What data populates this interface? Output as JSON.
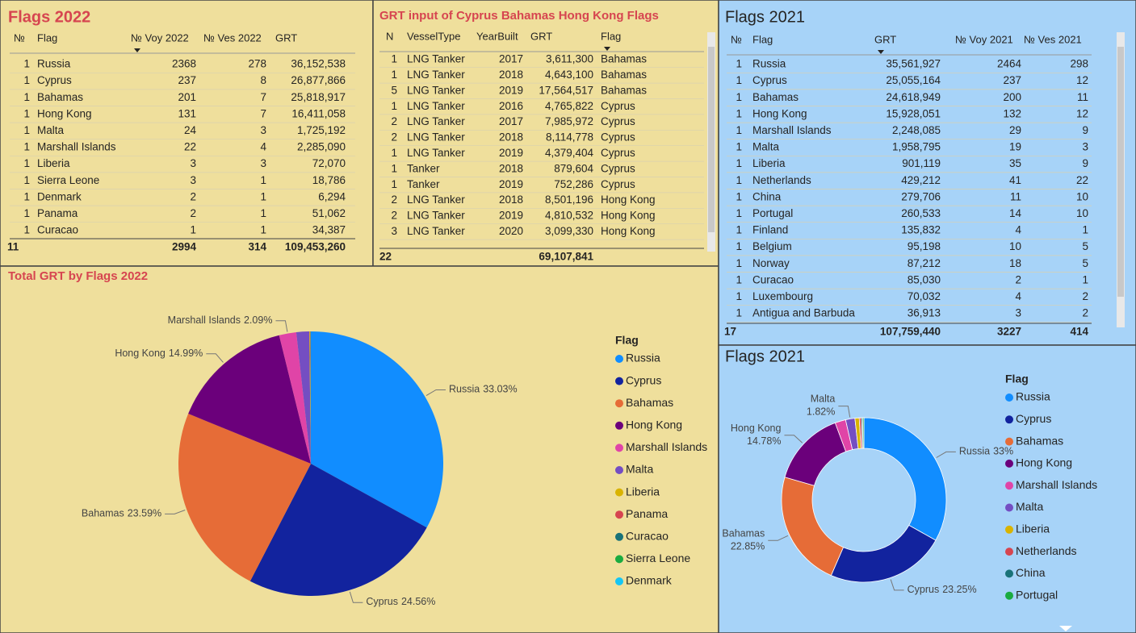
{
  "tables": [
    {
      "title": "Flags 2022",
      "columns": [
        "№",
        "Flag",
        "№ Voy 2022",
        "№ Ves 2022",
        "GRT"
      ],
      "rows": [
        [
          "1",
          "Russia",
          "2368",
          "278",
          "36,152,538"
        ],
        [
          "1",
          "Cyprus",
          "237",
          "8",
          "26,877,866"
        ],
        [
          "1",
          "Bahamas",
          "201",
          "7",
          "25,818,917"
        ],
        [
          "1",
          "Hong Kong",
          "131",
          "7",
          "16,411,058"
        ],
        [
          "1",
          "Malta",
          "24",
          "3",
          "1,725,192"
        ],
        [
          "1",
          "Marshall Islands",
          "22",
          "4",
          "2,285,090"
        ],
        [
          "1",
          "Liberia",
          "3",
          "3",
          "72,070"
        ],
        [
          "1",
          "Sierra Leone",
          "3",
          "1",
          "18,786"
        ],
        [
          "1",
          "Denmark",
          "2",
          "1",
          "6,294"
        ],
        [
          "1",
          "Panama",
          "2",
          "1",
          "51,062"
        ],
        [
          "1",
          "Curacao",
          "1",
          "1",
          "34,387"
        ]
      ],
      "total": [
        "11",
        null,
        "2994",
        "314",
        "109,453,260"
      ]
    },
    {
      "title": "GRT input of Cyprus Bahamas Hong Kong Flags",
      "columns": [
        "N",
        "VesselType",
        "YearBuilt",
        "GRT",
        "Flag"
      ],
      "rows": [
        [
          "1",
          "LNG Tanker",
          "2017",
          "3,611,300",
          "Bahamas"
        ],
        [
          "1",
          "LNG Tanker",
          "2018",
          "4,643,100",
          "Bahamas"
        ],
        [
          "5",
          "LNG Tanker",
          "2019",
          "17,564,517",
          "Bahamas"
        ],
        [
          "1",
          "LNG Tanker",
          "2016",
          "4,765,822",
          "Cyprus"
        ],
        [
          "2",
          "LNG Tanker",
          "2017",
          "7,985,972",
          "Cyprus"
        ],
        [
          "2",
          "LNG Tanker",
          "2018",
          "8,114,778",
          "Cyprus"
        ],
        [
          "1",
          "LNG Tanker",
          "2019",
          "4,379,404",
          "Cyprus"
        ],
        [
          "1",
          "Tanker",
          "2018",
          "879,604",
          "Cyprus"
        ],
        [
          "1",
          "Tanker",
          "2019",
          "752,286",
          "Cyprus"
        ],
        [
          "2",
          "LNG Tanker",
          "2018",
          "8,501,196",
          "Hong Kong"
        ],
        [
          "2",
          "LNG Tanker",
          "2019",
          "4,810,532",
          "Hong Kong"
        ],
        [
          "3",
          "LNG Tanker",
          "2020",
          "3,099,330",
          "Hong Kong"
        ]
      ],
      "total": [
        "22",
        null,
        null,
        "69,107,841",
        null
      ]
    },
    {
      "title": "Flags 2021",
      "columns": [
        "№",
        "Flag",
        "GRT",
        "№ Voy 2021",
        "№ Ves 2021"
      ],
      "rows": [
        [
          "1",
          "Russia",
          "35,561,927",
          "2464",
          "298"
        ],
        [
          "1",
          "Cyprus",
          "25,055,164",
          "237",
          "12"
        ],
        [
          "1",
          "Bahamas",
          "24,618,949",
          "200",
          "11"
        ],
        [
          "1",
          "Hong Kong",
          "15,928,051",
          "132",
          "12"
        ],
        [
          "1",
          "Marshall Islands",
          "2,248,085",
          "29",
          "9"
        ],
        [
          "1",
          "Malta",
          "1,958,795",
          "19",
          "3"
        ],
        [
          "1",
          "Liberia",
          "901,119",
          "35",
          "9"
        ],
        [
          "1",
          "Netherlands",
          "429,212",
          "41",
          "22"
        ],
        [
          "1",
          "China",
          "279,706",
          "11",
          "10"
        ],
        [
          "1",
          "Portugal",
          "260,533",
          "14",
          "10"
        ],
        [
          "1",
          "Finland",
          "135,832",
          "4",
          "1"
        ],
        [
          "1",
          "Belgium",
          "95,198",
          "10",
          "5"
        ],
        [
          "1",
          "Norway",
          "87,212",
          "18",
          "5"
        ],
        [
          "1",
          "Curacao",
          "85,030",
          "2",
          "1"
        ],
        [
          "1",
          "Luxembourg",
          "70,032",
          "4",
          "2"
        ],
        [
          "1",
          "Antigua and Barbuda",
          "36,913",
          "3",
          "2"
        ]
      ],
      "total": [
        "17",
        null,
        "107,759,440",
        "3227",
        "414"
      ]
    }
  ],
  "chart_data": [
    {
      "type": "pie",
      "title": "Total GRT by Flags 2022",
      "legend_title": "Flag",
      "categories": [
        "Russia",
        "Cyprus",
        "Bahamas",
        "Hong Kong",
        "Marshall Islands",
        "Malta",
        "Liberia",
        "Panama",
        "Curacao",
        "Sierra Leone",
        "Denmark"
      ],
      "values": [
        33.03,
        24.56,
        23.59,
        14.99,
        2.09,
        1.58,
        0.07,
        0.05,
        0.03,
        0.02,
        0.01
      ],
      "value_labels": [
        "33.03%",
        "24.56%",
        "23.59%",
        "14.99%",
        "2.09%",
        null,
        null,
        null,
        null,
        null,
        null
      ],
      "colors": [
        "#118dff",
        "#12239e",
        "#e66c37",
        "#6b007b",
        "#e044a7",
        "#744ec2",
        "#d9b300",
        "#d64550",
        "#197278",
        "#1aab40",
        "#15c6f4"
      ],
      "legend": "right"
    },
    {
      "type": "donut",
      "title": "Flags 2021",
      "legend_title": "Flag",
      "categories": [
        "Russia",
        "Cyprus",
        "Bahamas",
        "Hong Kong",
        "Marshall Islands",
        "Malta",
        "Liberia",
        "Netherlands",
        "China",
        "Portugal"
      ],
      "values": [
        33,
        23.25,
        22.85,
        14.78,
        2.09,
        1.82,
        0.84,
        0.4,
        0.26,
        0.24
      ],
      "value_labels": [
        "33%",
        "23.25%",
        "22.85%",
        "14.78%",
        null,
        "1.82%",
        null,
        null,
        null,
        null
      ],
      "colors": [
        "#118dff",
        "#12239e",
        "#e66c37",
        "#6b007b",
        "#e044a7",
        "#744ec2",
        "#d9b300",
        "#d64550",
        "#197278",
        "#1aab40"
      ],
      "legend": "right"
    }
  ]
}
